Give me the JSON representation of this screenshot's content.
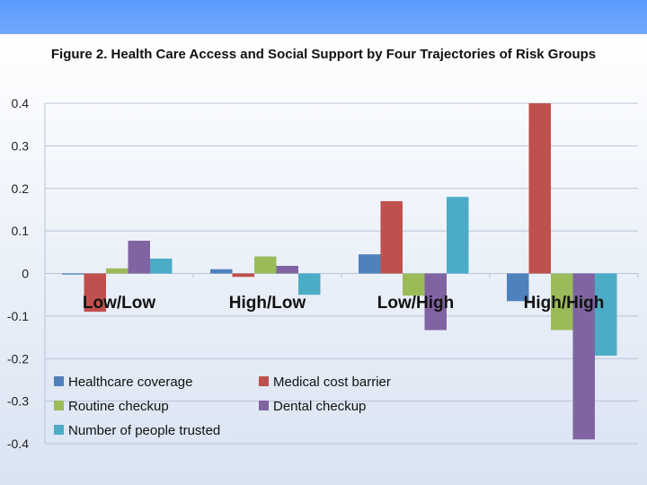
{
  "chart_data": {
    "type": "bar",
    "title": "Figure 2. Health Care Access and Social Support by Four Trajectories of Risk Groups",
    "xlabel": "",
    "ylabel": "",
    "ylim": [
      -0.4,
      0.4
    ],
    "yticks": [
      0.4,
      0.3,
      0.2,
      0.1,
      0,
      -0.1,
      -0.2,
      -0.3,
      -0.4
    ],
    "ytick_labels": [
      "0.4",
      "0.3",
      "0.2",
      "0.1",
      "0",
      "-0.1",
      "-0.2",
      "-0.3",
      "-0.4"
    ],
    "grid": true,
    "legend_position": "bottom-left, inside plot",
    "categories": [
      "Low/Low",
      "High/Low",
      "Low/High",
      "High/High"
    ],
    "series": [
      {
        "name": "Healthcare coverage",
        "color": "#4f81bd",
        "values": [
          0.0,
          0.01,
          0.045,
          -0.065
        ]
      },
      {
        "name": "Medical cost barrier",
        "color": "#c0504d",
        "values": [
          -0.09,
          -0.008,
          0.17,
          0.4
        ]
      },
      {
        "name": "Routine checkup",
        "color": "#9bbb59",
        "values": [
          0.012,
          0.04,
          -0.052,
          -0.133
        ]
      },
      {
        "name": "Dental checkup",
        "color": "#8064a2",
        "values": [
          0.077,
          0.018,
          -0.133,
          -0.39
        ]
      },
      {
        "name": "Number of people trusted",
        "color": "#4bacc6",
        "values": [
          0.035,
          -0.05,
          0.18,
          -0.193
        ]
      }
    ]
  }
}
